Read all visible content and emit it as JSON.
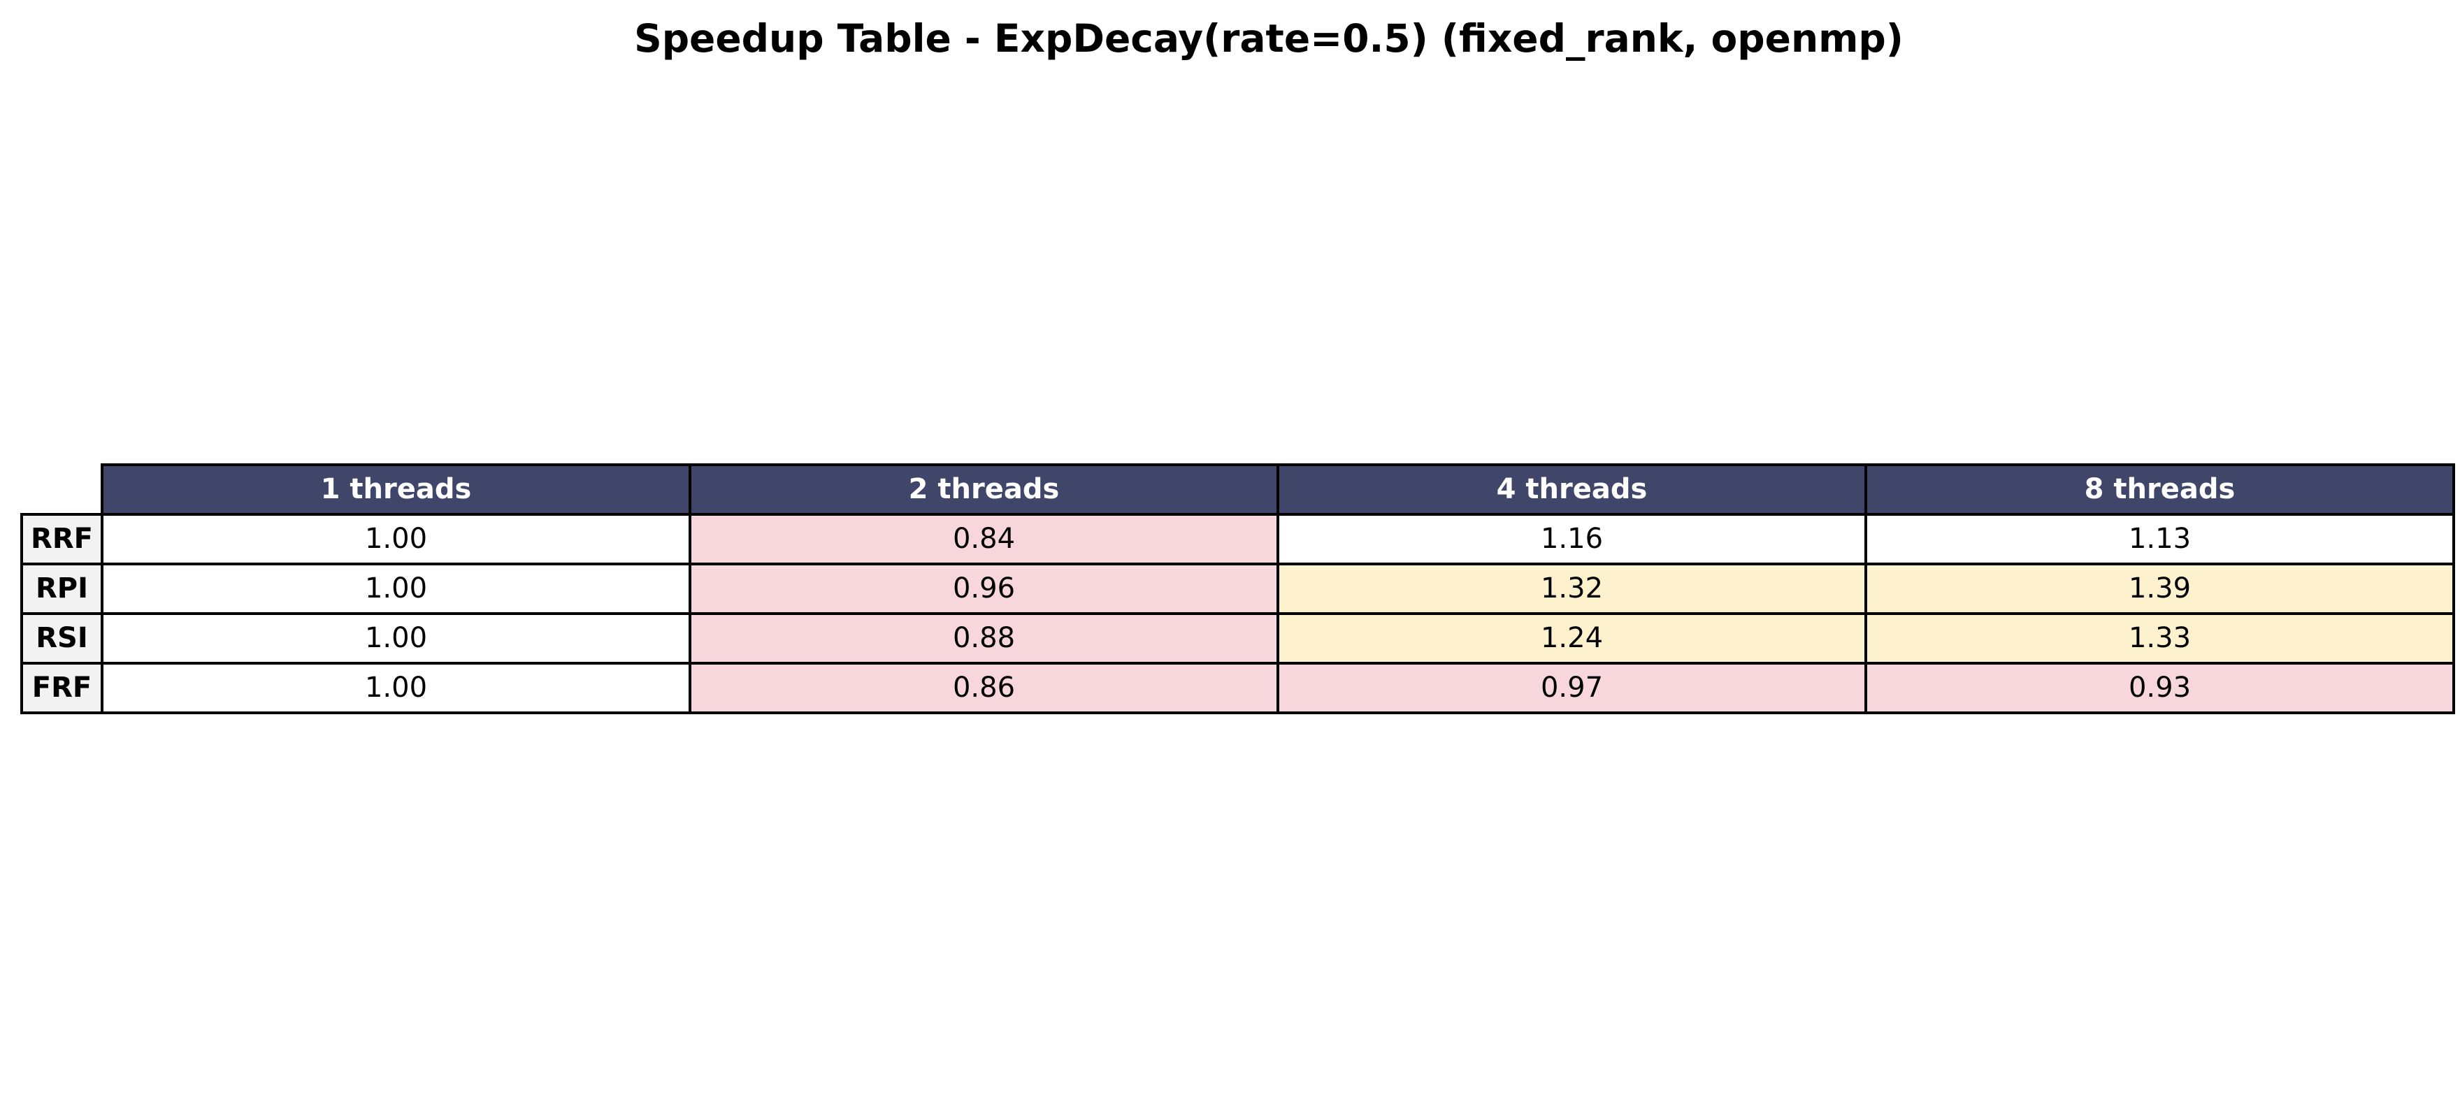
{
  "colors": {
    "header_bg": "#40466a",
    "header_text": "#ffffff",
    "row_label_bg": "#f2f2f2",
    "slower_fill": "#f7d7dc",
    "faster_fill": "#fdf2cd",
    "neutral_fill": "#ffffff"
  },
  "chart_data": {
    "type": "table",
    "title": "Speedup Table - ExpDecay(rate=0.5) (fixed_rank, openmp)",
    "columns": [
      "1 threads",
      "2 threads",
      "4 threads",
      "8 threads"
    ],
    "rows": [
      {
        "label": "RRF",
        "values": [
          "1.00",
          "0.84",
          "1.16",
          "1.13"
        ]
      },
      {
        "label": "RPI",
        "values": [
          "1.00",
          "0.96",
          "1.32",
          "1.39"
        ]
      },
      {
        "label": "RSI",
        "values": [
          "1.00",
          "0.88",
          "1.24",
          "1.33"
        ]
      },
      {
        "label": "FRF",
        "values": [
          "1.00",
          "0.86",
          "0.97",
          "0.93"
        ]
      }
    ]
  }
}
